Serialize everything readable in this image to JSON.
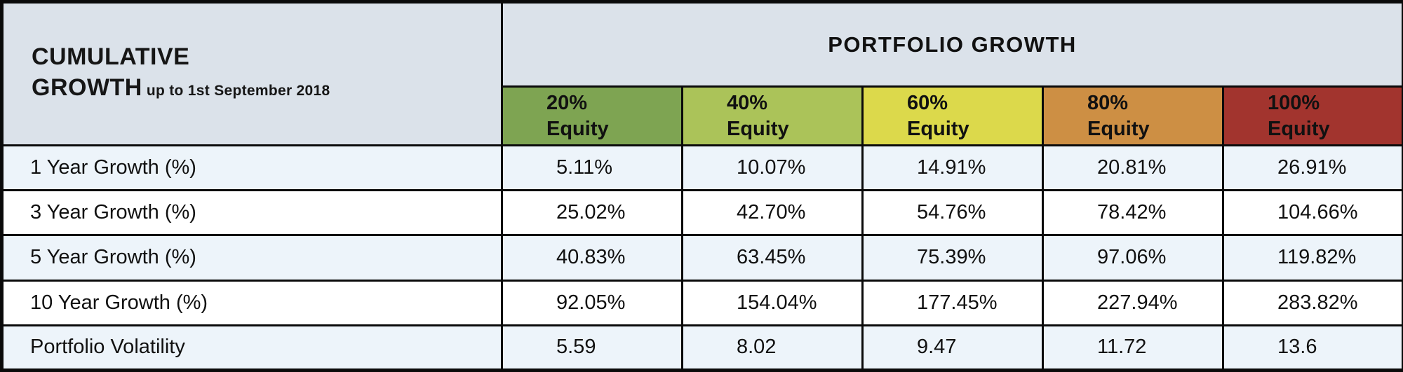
{
  "table": {
    "corner": {
      "title_line1": "CUMULATIVE",
      "title_line2": "GROWTH",
      "subtitle": "up to 1st September 2018"
    },
    "group_header": "PORTFOLIO GROWTH",
    "columns": [
      {
        "pct": "20%",
        "label": "Equity",
        "color": "#7ea452"
      },
      {
        "pct": "40%",
        "label": "Equity",
        "color": "#abc359"
      },
      {
        "pct": "60%",
        "label": "Equity",
        "color": "#dcd94b"
      },
      {
        "pct": "80%",
        "label": "Equity",
        "color": "#cd8f44"
      },
      {
        "pct": "100%",
        "label": "Equity",
        "color": "#a2342e"
      }
    ],
    "rows": [
      {
        "label": "1 Year Growth (%)",
        "values": [
          "5.11%",
          "10.07%",
          "14.91%",
          "20.81%",
          "26.91%"
        ]
      },
      {
        "label": "3 Year Growth (%)",
        "values": [
          "25.02%",
          "42.70%",
          "54.76%",
          "78.42%",
          "104.66%"
        ]
      },
      {
        "label": "5 Year Growth (%)",
        "values": [
          "40.83%",
          "63.45%",
          "75.39%",
          "97.06%",
          "119.82%"
        ]
      },
      {
        "label": "10 Year Growth (%)",
        "values": [
          "92.05%",
          "154.04%",
          "177.45%",
          "227.94%",
          "283.82%"
        ]
      },
      {
        "label": "Portfolio Volatility",
        "values": [
          "5.59",
          "8.02",
          "9.47",
          "11.72",
          "13.6"
        ]
      }
    ],
    "colors": {
      "header_background": "#dbe2ea",
      "row_tint": "#edf4fa",
      "row_plain": "#ffffff",
      "border": "#0a0a0a",
      "text": "#111111"
    }
  },
  "chart_data": {
    "type": "table",
    "title": "CUMULATIVE GROWTH up to 1st September 2018",
    "group_header": "PORTFOLIO GROWTH",
    "columns": [
      "20% Equity",
      "40% Equity",
      "60% Equity",
      "80% Equity",
      "100% Equity"
    ],
    "rows": [
      {
        "label": "1 Year Growth (%)",
        "values": [
          5.11,
          10.07,
          14.91,
          20.81,
          26.91
        ]
      },
      {
        "label": "3 Year Growth (%)",
        "values": [
          25.02,
          42.7,
          54.76,
          78.42,
          104.66
        ]
      },
      {
        "label": "5 Year Growth (%)",
        "values": [
          40.83,
          63.45,
          75.39,
          97.06,
          119.82
        ]
      },
      {
        "label": "10 Year Growth (%)",
        "values": [
          92.05,
          154.04,
          177.45,
          227.94,
          283.82
        ]
      },
      {
        "label": "Portfolio Volatility",
        "values": [
          5.59,
          8.02,
          9.47,
          11.72,
          13.6
        ]
      }
    ],
    "column_colors": [
      "#7ea452",
      "#abc359",
      "#dcd94b",
      "#cd8f44",
      "#a2342e"
    ]
  }
}
